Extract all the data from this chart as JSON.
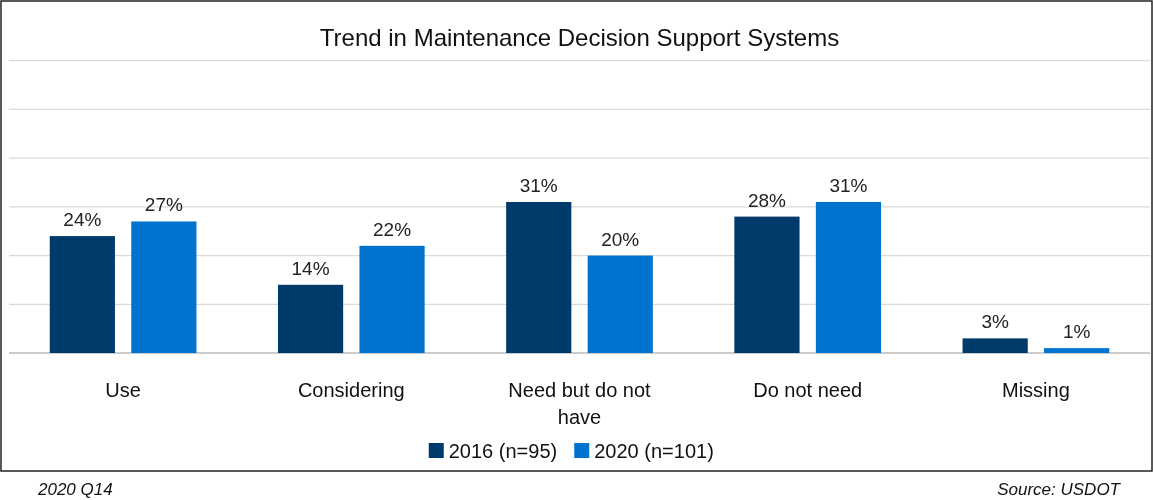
{
  "chart_data": {
    "type": "bar",
    "title": "Trend in Maintenance Decision Support Systems",
    "categories": [
      "Use",
      "Considering",
      "Need but do not have",
      "Do not need",
      "Missing"
    ],
    "series": [
      {
        "name": "2016 (n=95)",
        "color": "#003a6b",
        "values": [
          24,
          14,
          31,
          28,
          3
        ],
        "value_labels": [
          "24%",
          "14%",
          "31%",
          "28%",
          "3%"
        ]
      },
      {
        "name": "2020 (n=101)",
        "color": "#0073cf",
        "values": [
          27,
          22,
          20,
          31,
          1
        ],
        "value_labels": [
          "27%",
          "22%",
          "20%",
          "31%",
          "1%"
        ]
      }
    ],
    "grid": "y",
    "legend": "bottom",
    "annotations": [
      "2020 Q14",
      "Source: USDOT"
    ]
  }
}
